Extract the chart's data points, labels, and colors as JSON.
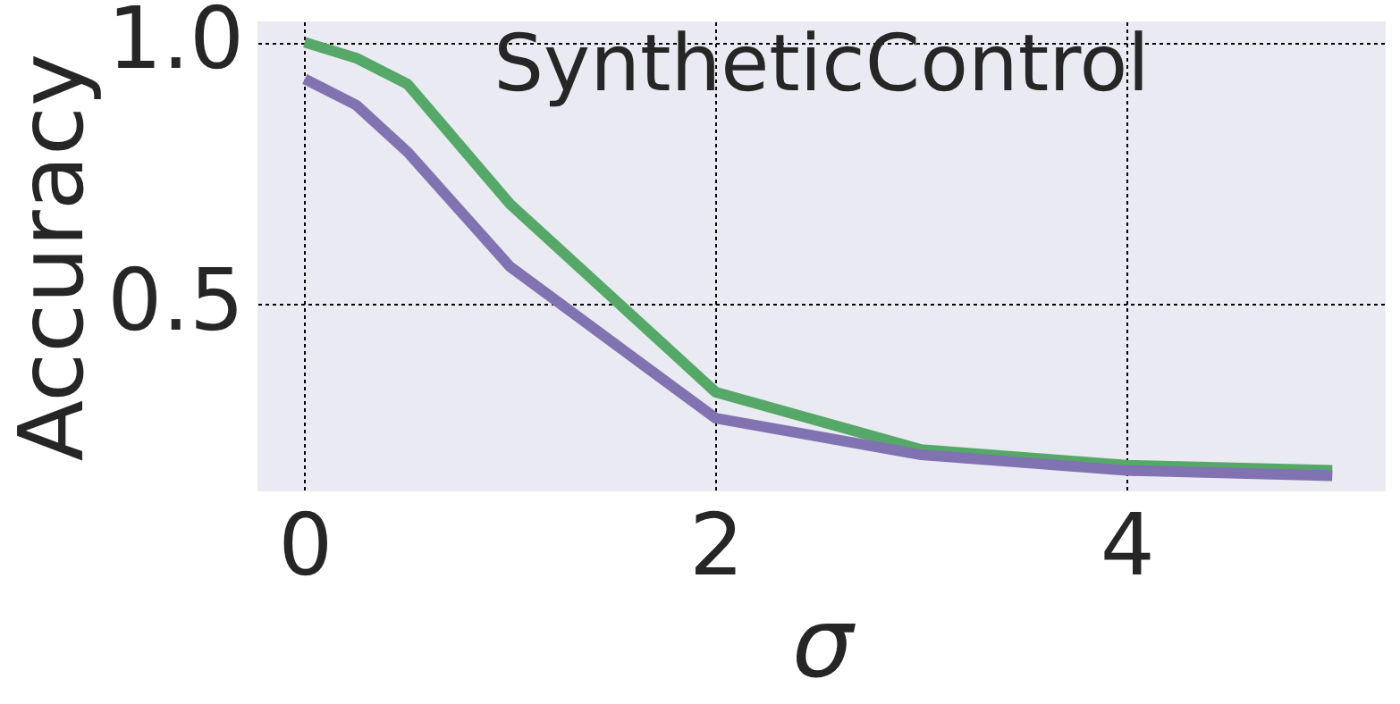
{
  "chart_data": {
    "type": "line",
    "title": "SyntheticControl",
    "xlabel": "σ",
    "ylabel": "Accuracy",
    "x": [
      0,
      0.25,
      0.5,
      1,
      2,
      3,
      4,
      5
    ],
    "series": [
      {
        "color": "#55a868",
        "values": [
          1.0,
          0.97,
          0.92,
          0.69,
          0.33,
          0.22,
          0.19,
          0.18
        ]
      },
      {
        "color": "#8172b2",
        "values": [
          0.93,
          0.88,
          0.79,
          0.57,
          0.28,
          0.21,
          0.18,
          0.17
        ]
      }
    ],
    "xlim": [
      -0.23,
      5.26
    ],
    "ylim": [
      0.14,
      1.04
    ],
    "xticks": [
      0,
      2,
      4
    ],
    "yticks": [
      0.5,
      {
        "value": 1.0,
        "label": "1.0"
      }
    ],
    "grid": true,
    "marker": "none",
    "line_style": "solid"
  }
}
